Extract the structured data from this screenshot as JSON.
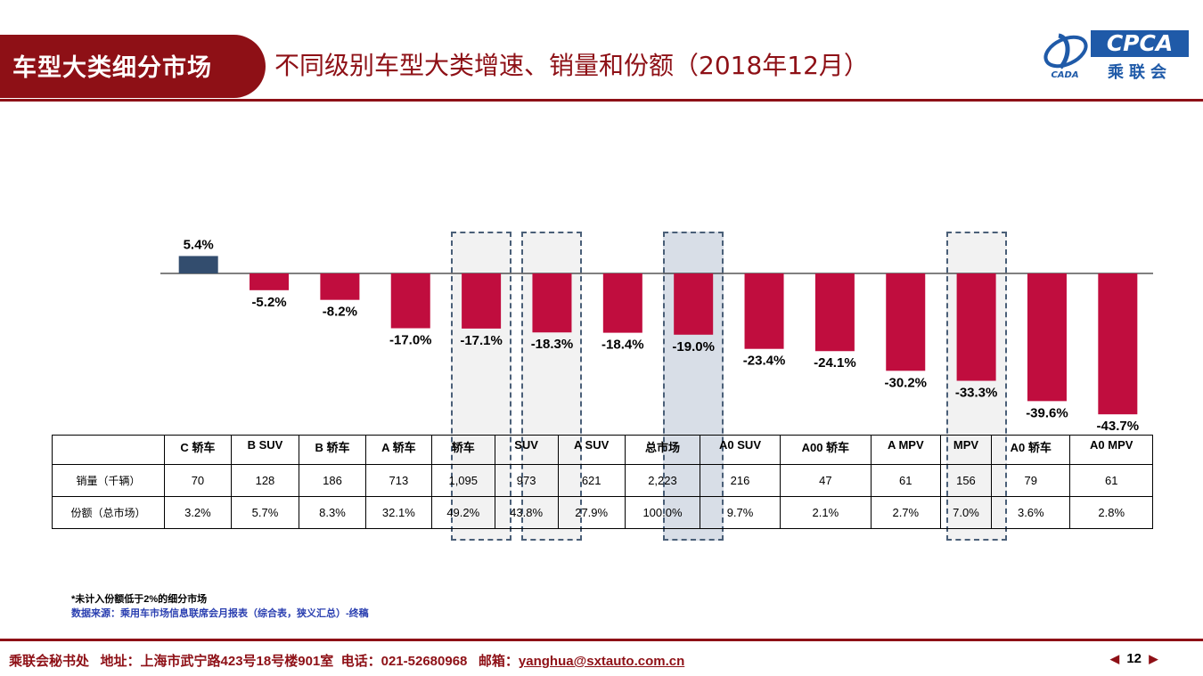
{
  "header": {
    "section_label": "车型大类细分市场",
    "title": "不同级别车型大类增速、销量和份额（2018年12月）"
  },
  "logo": {
    "text": "CPCA",
    "subtext": "乘联会",
    "mark_text": "CADA"
  },
  "colors": {
    "brand": "#8e1016",
    "positive_bar": "#334d6e",
    "negative_bar": "#c00d3e",
    "highlight_border": "#4a5f78"
  },
  "chart_data": {
    "type": "bar",
    "categories": [
      "C 轿车",
      "B SUV",
      "B 轿车",
      "A 轿车",
      "轿车",
      "SUV",
      "A SUV",
      "总市场",
      "A0 SUV",
      "A00 轿车",
      "A MPV",
      "MPV",
      "A0 轿车",
      "A0 MPV"
    ],
    "values": [
      5.4,
      -5.2,
      -8.2,
      -17.0,
      -17.1,
      -18.3,
      -18.4,
      -19.0,
      -23.4,
      -24.1,
      -30.2,
      -33.3,
      -39.6,
      -43.7
    ],
    "value_labels": [
      "5.4%",
      "-5.2%",
      "-8.2%",
      "-17.0%",
      "-17.1%",
      "-18.3%",
      "-18.4%",
      "-19.0%",
      "-23.4%",
      "-24.1%",
      "-30.2%",
      "-33.3%",
      "-39.6%",
      "-43.7%"
    ],
    "highlighted_categories": [
      "轿车",
      "SUV",
      "总市场",
      "MPV"
    ],
    "unit": "%",
    "grid": false
  },
  "table": {
    "columns": [
      "C 轿车",
      "B SUV",
      "B 轿车",
      "A 轿车",
      "轿车",
      "SUV",
      "A SUV",
      "总市场",
      "A0 SUV",
      "A00 轿车",
      "A MPV",
      "MPV",
      "A0 轿车",
      "A0 MPV"
    ],
    "rows": [
      {
        "label": "销量（千辆）",
        "values": [
          "70",
          "128",
          "186",
          "713",
          "1,095",
          "973",
          "621",
          "2,223",
          "216",
          "47",
          "61",
          "156",
          "79",
          "61"
        ]
      },
      {
        "label": "份额（总市场）",
        "values": [
          "3.2%",
          "5.7%",
          "8.3%",
          "32.1%",
          "49.2%",
          "43.8%",
          "27.9%",
          "100.0%",
          "9.7%",
          "2.1%",
          "2.7%",
          "7.0%",
          "3.6%",
          "2.8%"
        ]
      }
    ]
  },
  "notes": {
    "footnote": "*未计入份额低于2%的细分市场",
    "source": "数据来源：乘用车市场信息联席会月报表（综合表，狭义汇总）-终稿"
  },
  "footer": {
    "org": "乘联会秘书处",
    "address": "地址：上海市武宁路423号18号楼901室",
    "phone": "电话：021-52680968",
    "email_label": "邮箱：",
    "email": "yanghua@sxtauto.com.cn",
    "page": "12"
  }
}
